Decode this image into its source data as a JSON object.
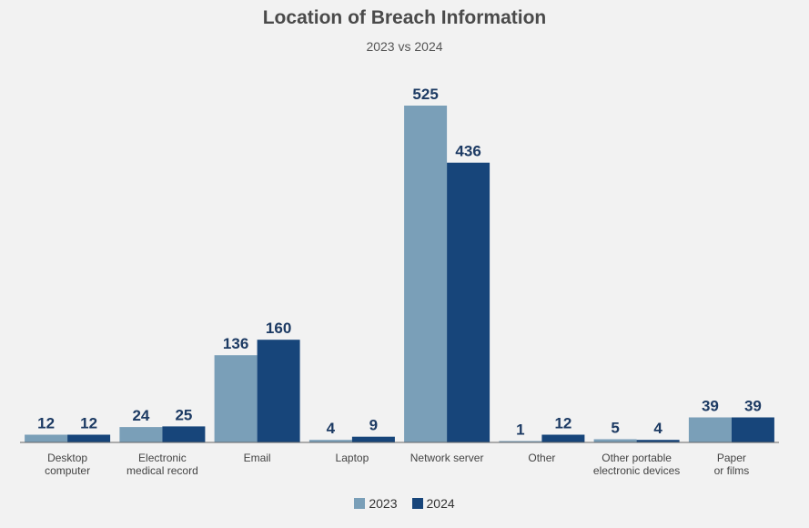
{
  "title": "Location of Breach Information",
  "subtitle": "2023 vs 2024",
  "colors": {
    "s2023": "#7a9fb8",
    "s2024": "#17457a",
    "label": "#1c3a63"
  },
  "chart_data": {
    "type": "bar",
    "title": "Location of Breach Information",
    "subtitle": "2023 vs 2024",
    "categories": [
      [
        "Desktop",
        "computer"
      ],
      [
        "Electronic",
        "medical record"
      ],
      [
        "Email"
      ],
      [
        "Laptop"
      ],
      [
        "Network server"
      ],
      [
        "Other"
      ],
      [
        "Other portable",
        "electronic devices"
      ],
      [
        "Paper",
        "or films"
      ]
    ],
    "series": [
      {
        "name": "2023",
        "values": [
          12,
          24,
          136,
          4,
          525,
          1,
          5,
          39
        ]
      },
      {
        "name": "2024",
        "values": [
          12,
          25,
          160,
          9,
          436,
          12,
          4,
          39
        ]
      }
    ],
    "ylim": [
      0,
      525
    ],
    "grid": false,
    "legend": "bottom-center"
  }
}
